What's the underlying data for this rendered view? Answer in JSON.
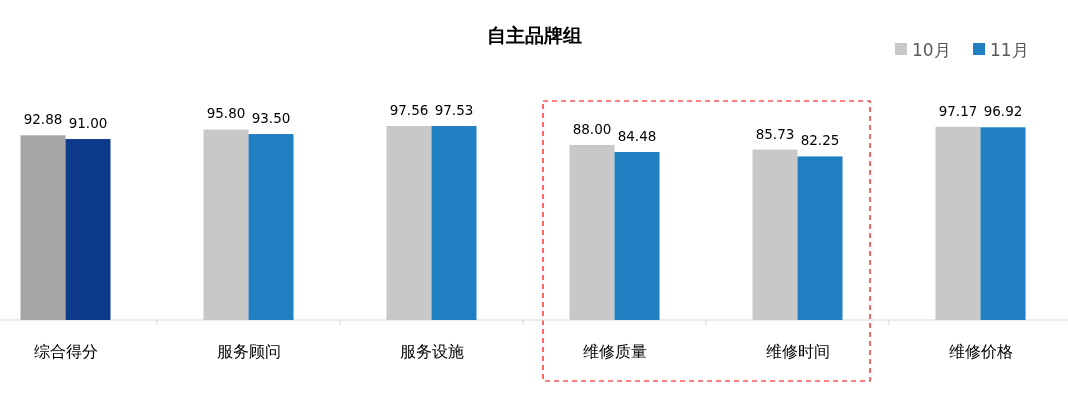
{
  "chart_data": {
    "type": "bar",
    "title": "自主品牌组",
    "categories": [
      "综合得分",
      "服务顾问",
      "服务设施",
      "维修质量",
      "维修时间",
      "维修价格"
    ],
    "series": [
      {
        "name": "10月",
        "color": "#c8c8c8",
        "colors": [
          "#a5a5a5",
          "#c8c8c8",
          "#c8c8c8",
          "#c8c8c8",
          "#c8c8c8",
          "#c8c8c8"
        ],
        "values": [
          92.88,
          95.8,
          97.56,
          88.0,
          85.73,
          97.17
        ],
        "value_labels": [
          "92.88",
          "95.80",
          "97.56",
          "88.00",
          "85.73",
          "97.17"
        ]
      },
      {
        "name": "11月",
        "color": "#1f7fc0",
        "colors": [
          "#0e3a8a",
          "#1f7fc0",
          "#1f7fc0",
          "#1f7fc0",
          "#1f7fc0",
          "#1f7fc0"
        ],
        "values": [
          91.0,
          93.5,
          97.53,
          84.48,
          82.25,
          96.92
        ],
        "value_labels": [
          "91.00",
          "93.50",
          "97.53",
          "84.48",
          "82.25",
          "96.92"
        ]
      }
    ],
    "tick_labels": "x",
    "legend": "top right"
  }
}
